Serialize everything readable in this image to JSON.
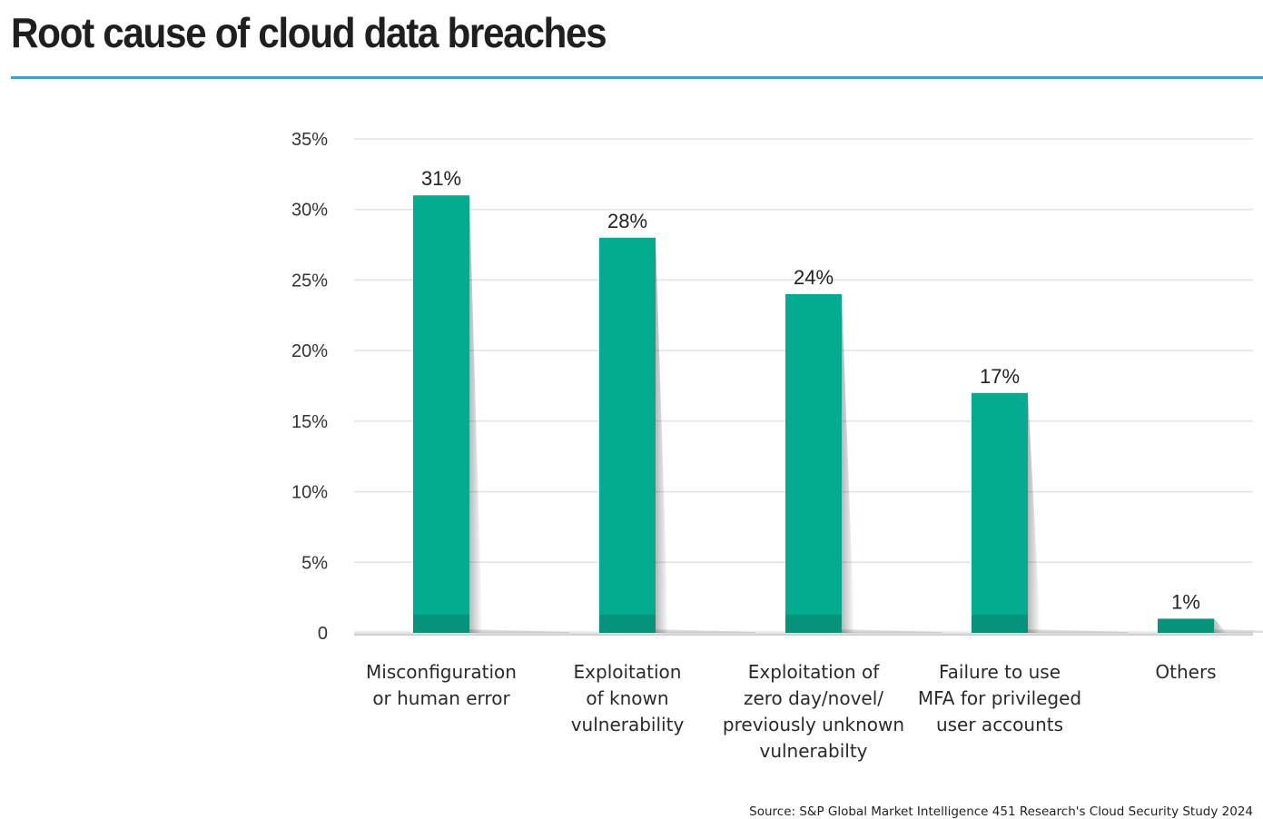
{
  "header": {
    "title": "Root cause of cloud data breaches"
  },
  "colors": {
    "bar": "#03ab8f",
    "bar_dark": "#0a7f6b",
    "title_rule": "#3aa0cf",
    "grid": "#e3e3e3"
  },
  "chart_data": {
    "type": "bar",
    "title": "Root cause of cloud data breaches",
    "categories": [
      [
        "Misconfiguration",
        "or human error"
      ],
      [
        "Exploitation",
        "of known",
        "vulnerability"
      ],
      [
        "Exploitation of",
        "zero day/novel/",
        "previously unknown",
        "vulnerabilty"
      ],
      [
        "Failure to use",
        "MFA for privileged",
        "user accounts"
      ],
      [
        "Others"
      ]
    ],
    "values": [
      31,
      28,
      24,
      17,
      1
    ],
    "data_labels": [
      "31%",
      "28%",
      "24%",
      "17%",
      "1%"
    ],
    "ylim": [
      0,
      35
    ],
    "yticks": [
      0,
      5,
      10,
      15,
      20,
      25,
      30,
      35
    ],
    "ytick_labels": [
      "0",
      "5%",
      "10%",
      "15%",
      "20%",
      "25%",
      "30%",
      "35%"
    ],
    "xlabel": "",
    "ylabel": "",
    "grid": true,
    "legend": "none"
  },
  "footer": {
    "source": "Source: S&P Global Market Intelligence 451 Research's Cloud Security Study 2024"
  }
}
